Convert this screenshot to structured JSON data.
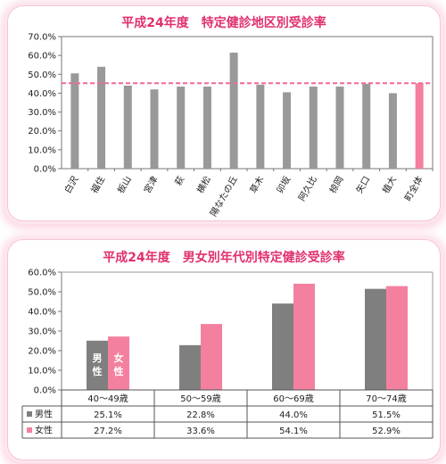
{
  "chart_data": [
    {
      "type": "bar",
      "title": "平成24年度　特定健診地区別受診率",
      "categories": [
        "白沢",
        "福住",
        "板山",
        "宮津",
        "萩",
        "横松",
        "陽なたの丘",
        "草木",
        "卯坂",
        "阿久比",
        "椋岡",
        "矢口",
        "植大",
        "町全体"
      ],
      "values": [
        50.5,
        54.0,
        44.0,
        42.0,
        43.5,
        43.5,
        61.5,
        44.5,
        40.5,
        43.5,
        43.5,
        45.0,
        40.0,
        45.3
      ],
      "highlight_category": "町全体",
      "reference_line": 45.3,
      "ylim": [
        0,
        70
      ],
      "yticks": [
        "0.0%",
        "10.0%",
        "20.0%",
        "30.0%",
        "40.0%",
        "50.0%",
        "60.0%",
        "70.0%"
      ],
      "grid": false,
      "colors": {
        "bar": "#999999",
        "highlight": "#f4809f",
        "reference": "#f06a96"
      }
    },
    {
      "type": "bar",
      "title": "平成24年度　男女別年代別特定健診受診率",
      "categories": [
        "40～49歳",
        "50～59歳",
        "60～69歳",
        "70～74歳"
      ],
      "series": [
        {
          "name": "男性",
          "values": [
            25.1,
            22.8,
            44.0,
            51.5
          ],
          "labels": [
            "25.1%",
            "22.8%",
            "44.0%",
            "51.5%"
          ],
          "color": "#7f7f7f"
        },
        {
          "name": "女性",
          "values": [
            27.2,
            33.6,
            54.1,
            52.9
          ],
          "labels": [
            "27.2%",
            "33.6%",
            "54.1%",
            "52.9%"
          ],
          "color": "#f4809f"
        }
      ],
      "ylim": [
        0,
        60
      ],
      "yticks": [
        "0.0%",
        "10.0%",
        "20.0%",
        "30.0%",
        "40.0%",
        "50.0%",
        "60.0%"
      ],
      "grid": false,
      "bar_annotations": [
        "男性",
        "女性"
      ]
    }
  ]
}
